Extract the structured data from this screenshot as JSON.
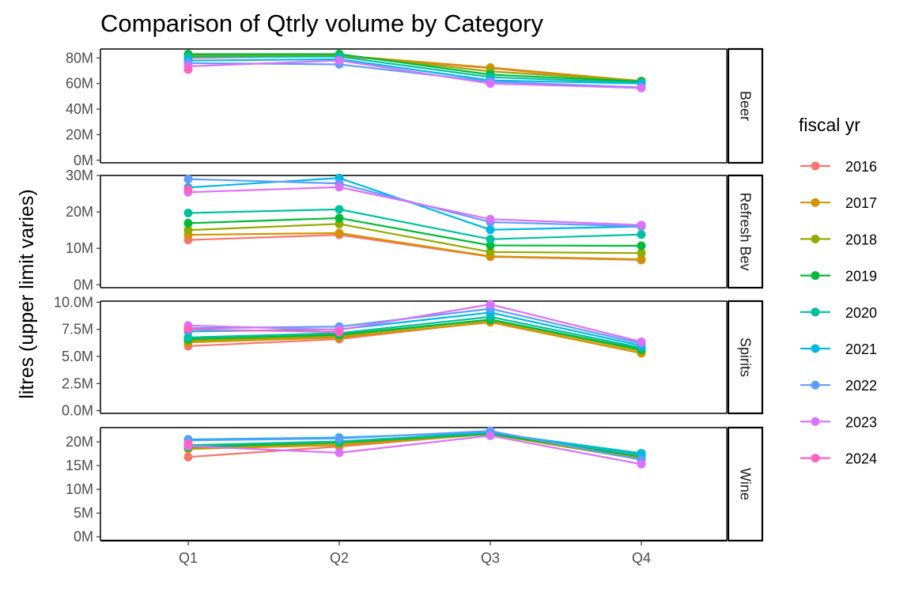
{
  "chart_data": {
    "type": "line",
    "title": "Comparison of Qtrly volume by Category",
    "xlabel": "",
    "ylabel": "litres (upper limit varies)",
    "categories": [
      "Q1",
      "Q2",
      "Q3",
      "Q4"
    ],
    "legend": {
      "title": "fiscal yr",
      "position": "right",
      "entries": [
        {
          "name": "2016",
          "color": "#F8766D"
        },
        {
          "name": "2017",
          "color": "#D39200"
        },
        {
          "name": "2018",
          "color": "#93AA00"
        },
        {
          "name": "2019",
          "color": "#00BA38"
        },
        {
          "name": "2020",
          "color": "#00C19F"
        },
        {
          "name": "2021",
          "color": "#00B9E3"
        },
        {
          "name": "2022",
          "color": "#619CFF"
        },
        {
          "name": "2023",
          "color": "#DB72FB"
        },
        {
          "name": "2024",
          "color": "#FF61C3"
        }
      ]
    },
    "panels": [
      {
        "label": "Beer",
        "ylim": [
          -2000000,
          87000000
        ],
        "ticks": [
          0,
          20000000,
          40000000,
          60000000,
          80000000
        ],
        "tick_labels": [
          "0M",
          "20M",
          "40M",
          "60M",
          "80M"
        ],
        "series": [
          {
            "name": "2016",
            "values": [
              80000000,
              81500000,
              72000000,
              61000000
            ]
          },
          {
            "name": "2017",
            "values": [
              81000000,
              82000000,
              72500000,
              62000000
            ]
          },
          {
            "name": "2018",
            "values": [
              82000000,
              82500000,
              69500000,
              62000000
            ]
          },
          {
            "name": "2019",
            "values": [
              83000000,
              83000000,
              67000000,
              61500000
            ]
          },
          {
            "name": "2020",
            "values": [
              81000000,
              81000000,
              65000000,
              60500000
            ]
          },
          {
            "name": "2021",
            "values": [
              78000000,
              79000000,
              62500000,
              60000000
            ]
          },
          {
            "name": "2022",
            "values": [
              76000000,
              75000000,
              61500000,
              57000000
            ]
          },
          {
            "name": "2023",
            "values": [
              73500000,
              78000000,
              60000000,
              56500000
            ]
          },
          {
            "name": "2024",
            "values": [
              71000000,
              null,
              null,
              null
            ]
          }
        ]
      },
      {
        "label": "Refresh Bev",
        "ylim": [
          -800000,
          30000000
        ],
        "ticks": [
          0,
          10000000,
          20000000,
          30000000
        ],
        "tick_labels": [
          "0M",
          "10M",
          "20M",
          "30M"
        ],
        "series": [
          {
            "name": "2016",
            "values": [
              12300000,
              13700000,
              7700000,
              6800000
            ]
          },
          {
            "name": "2017",
            "values": [
              13700000,
              14200000,
              7800000,
              7000000
            ]
          },
          {
            "name": "2018",
            "values": [
              15000000,
              16700000,
              9000000,
              8700000
            ]
          },
          {
            "name": "2019",
            "values": [
              16900000,
              18300000,
              10800000,
              10700000
            ]
          },
          {
            "name": "2020",
            "values": [
              19700000,
              20700000,
              12500000,
              13800000
            ]
          },
          {
            "name": "2021",
            "values": [
              26700000,
              29300000,
              15100000,
              16000000
            ]
          },
          {
            "name": "2022",
            "values": [
              29000000,
              27800000,
              17200000,
              16000000
            ]
          },
          {
            "name": "2023",
            "values": [
              25400000,
              26800000,
              18000000,
              16400000
            ]
          },
          {
            "name": "2024",
            "values": [
              26200000,
              null,
              null,
              null
            ]
          }
        ]
      },
      {
        "label": "Spirits",
        "ylim": [
          -250000,
          10100000
        ],
        "ticks": [
          0,
          2500000,
          5000000,
          7500000,
          10000000
        ],
        "tick_labels": [
          "0.0M",
          "2.5M",
          "5.0M",
          "7.5M",
          "10.0M"
        ],
        "series": [
          {
            "name": "2016",
            "values": [
              5950000,
              6600000,
              8200000,
              5300000
            ]
          },
          {
            "name": "2017",
            "values": [
              6300000,
              6750000,
              8150000,
              5300000
            ]
          },
          {
            "name": "2018",
            "values": [
              6450000,
              6900000,
              8350000,
              5500000
            ]
          },
          {
            "name": "2019",
            "values": [
              6600000,
              7000000,
              8400000,
              5650000
            ]
          },
          {
            "name": "2020",
            "values": [
              6750000,
              7150000,
              8650000,
              5800000
            ]
          },
          {
            "name": "2021",
            "values": [
              7300000,
              7500000,
              9050000,
              6000000
            ]
          },
          {
            "name": "2022",
            "values": [
              7600000,
              7750000,
              9400000,
              6200000
            ]
          },
          {
            "name": "2023",
            "values": [
              7850000,
              7450000,
              9800000,
              6350000
            ]
          },
          {
            "name": "2024",
            "values": [
              7500000,
              7250000,
              null,
              null
            ]
          }
        ]
      },
      {
        "label": "Wine",
        "ylim": [
          -800000,
          23000000
        ],
        "ticks": [
          0,
          5000000,
          10000000,
          15000000,
          20000000
        ],
        "tick_labels": [
          "0M",
          "5M",
          "10M",
          "15M",
          "20M"
        ],
        "series": [
          {
            "name": "2016",
            "values": [
              16800000,
              19000000,
              21700000,
              16600000
            ]
          },
          {
            "name": "2017",
            "values": [
              18500000,
              19300000,
              21600000,
              16700000
            ]
          },
          {
            "name": "2018",
            "values": [
              18700000,
              19700000,
              21600000,
              16300000
            ]
          },
          {
            "name": "2019",
            "values": [
              18900000,
              19900000,
              21700000,
              16900000
            ]
          },
          {
            "name": "2020",
            "values": [
              19300000,
              20100000,
              21900000,
              17600000
            ]
          },
          {
            "name": "2021",
            "values": [
              20500000,
              20900000,
              22000000,
              17300000
            ]
          },
          {
            "name": "2022",
            "values": [
              20300000,
              20700000,
              22300000,
              16200000
            ]
          },
          {
            "name": "2023",
            "values": [
              19100000,
              17700000,
              21300000,
              15300000
            ]
          },
          {
            "name": "2024",
            "values": [
              19600000,
              null,
              null,
              null
            ]
          }
        ]
      }
    ]
  }
}
